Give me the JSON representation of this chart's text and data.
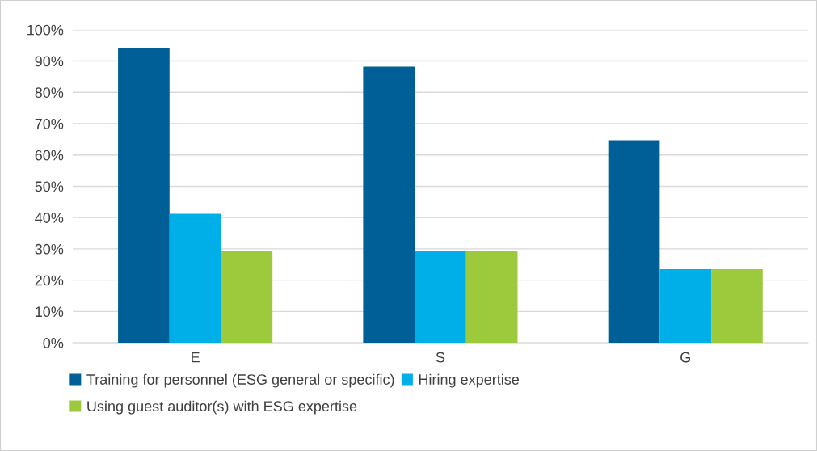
{
  "chart_data": {
    "type": "bar",
    "categories": [
      "E",
      "S",
      "G"
    ],
    "series": [
      {
        "name": "Training for personnel (ESG general or specific)",
        "color": "#005f96",
        "values": [
          94.1,
          88.2,
          64.7
        ]
      },
      {
        "name": "Hiring expertise",
        "color": "#00aee8",
        "values": [
          41.2,
          29.4,
          23.5
        ]
      },
      {
        "name": "Using guest auditor(s) with ESG expertise",
        "color": "#9dc93c",
        "values": [
          29.4,
          29.4,
          23.5
        ]
      }
    ],
    "ylim": [
      0,
      100
    ],
    "yticks": [
      {
        "value": 0,
        "label": "0%"
      },
      {
        "value": 10,
        "label": "10%"
      },
      {
        "value": 20,
        "label": "20%"
      },
      {
        "value": 30,
        "label": "30%"
      },
      {
        "value": 40,
        "label": "40%"
      },
      {
        "value": 50,
        "label": "50%"
      },
      {
        "value": 60,
        "label": "60%"
      },
      {
        "value": 70,
        "label": "70%"
      },
      {
        "value": 80,
        "label": "80%"
      },
      {
        "value": 90,
        "label": "90%"
      },
      {
        "value": 100,
        "label": "100%"
      }
    ],
    "grid": "y",
    "legend": "bottom"
  }
}
